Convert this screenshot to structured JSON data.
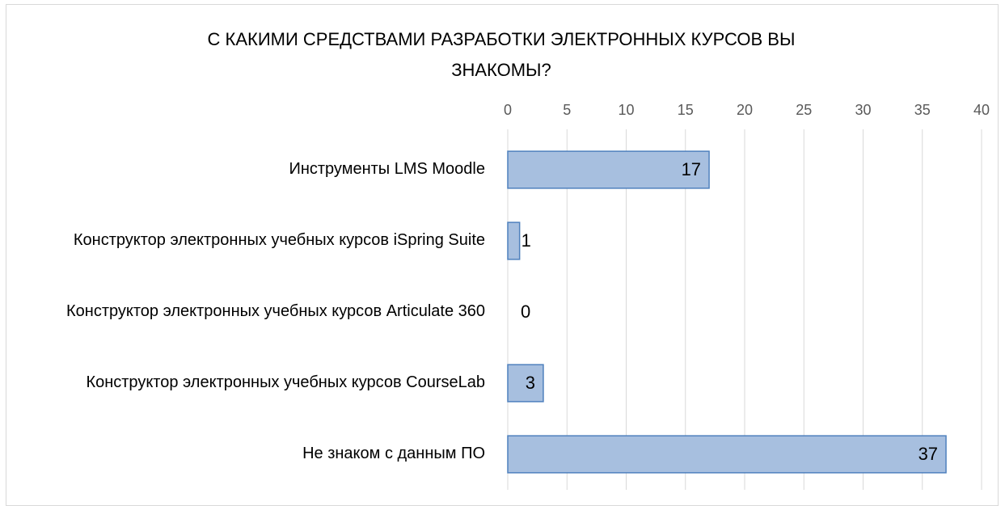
{
  "chart_data": {
    "type": "bar",
    "orientation": "horizontal",
    "title": "С КАКИМИ СРЕДСТВАМИ РАЗРАБОТКИ ЭЛЕКТРОННЫХ КУРСОВ ВЫ ЗНАКОМЫ?",
    "categories": [
      "Инструменты LMS Moodle",
      "Конструктор электронных учебных курсов iSpring Suite",
      "Конструктор электронных учебных курсов Articulate 360",
      "Конструктор электронных учебных курсов CourseLab",
      "Не знаком с данным ПО"
    ],
    "values": [
      17,
      1,
      0,
      3,
      37
    ],
    "color": "#a7bfdf",
    "xlim": [
      0,
      40
    ],
    "xticks": [
      0,
      5,
      10,
      15,
      20,
      25,
      30,
      35,
      40
    ],
    "grid": true
  }
}
